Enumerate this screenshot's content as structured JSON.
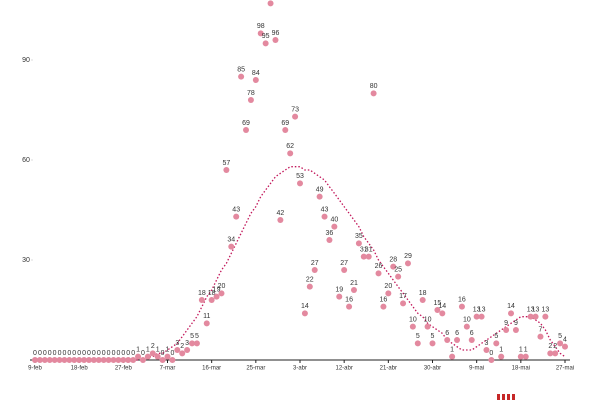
{
  "chart_data": {
    "type": "scatter",
    "categories": [
      "9-feb",
      null,
      null,
      null,
      null,
      null,
      null,
      null,
      null,
      "18-feb",
      null,
      null,
      null,
      null,
      null,
      null,
      null,
      null,
      "27-feb",
      null,
      null,
      null,
      null,
      null,
      null,
      null,
      null,
      "7-mar",
      null,
      null,
      null,
      null,
      null,
      null,
      null,
      null,
      "16-mar",
      null,
      null,
      null,
      null,
      null,
      null,
      null,
      null,
      "25-mar",
      null,
      null,
      null,
      null,
      null,
      null,
      null,
      null,
      "3-abr",
      null,
      null,
      null,
      null,
      null,
      null,
      null,
      null,
      "12-abr",
      null,
      null,
      null,
      null,
      null,
      null,
      null,
      null,
      "21-abr",
      null,
      null,
      null,
      null,
      null,
      null,
      null,
      null,
      "30-abr",
      null,
      null,
      null,
      null,
      null,
      null,
      null,
      null,
      "9-mai",
      null,
      null,
      null,
      null,
      null,
      null,
      null,
      null,
      "18-mai",
      null,
      null,
      null,
      null,
      null,
      null,
      null,
      null,
      "27-mai"
    ],
    "series": [
      {
        "color": "#e3899f",
        "values": [
          0,
          0,
          0,
          0,
          0,
          0,
          0,
          0,
          0,
          0,
          0,
          0,
          0,
          0,
          0,
          0,
          0,
          0,
          0,
          0,
          0,
          1,
          0,
          1,
          2,
          1,
          0,
          1,
          0,
          3,
          2,
          3,
          5,
          5,
          18,
          11,
          18,
          19,
          20,
          57,
          34,
          43,
          85,
          69,
          78,
          84,
          98,
          95,
          107,
          96,
          42,
          69,
          62,
          73,
          53,
          14,
          22,
          27,
          49,
          43,
          36,
          40,
          19,
          27,
          16,
          21,
          35,
          31,
          31,
          80,
          26,
          16,
          20,
          28,
          25,
          17,
          29,
          10,
          5,
          18,
          10,
          5,
          15,
          14,
          6,
          1,
          6,
          16,
          10,
          6,
          13,
          13,
          3,
          0,
          5,
          1,
          9,
          14,
          9,
          1,
          1,
          13,
          13,
          7,
          13,
          2,
          2,
          5,
          4
        ]
      },
      {
        "color": "#c2185b",
        "values": [
          0,
          0,
          0,
          0,
          0,
          0,
          0,
          0,
          0,
          0,
          0,
          0,
          0,
          0,
          0,
          0,
          0,
          0,
          0,
          0,
          0,
          0,
          0,
          1,
          1,
          2,
          2,
          3,
          4,
          5,
          7,
          9,
          11,
          13,
          16,
          19,
          21,
          24,
          27,
          29,
          32,
          35,
          38,
          41,
          44,
          46,
          49,
          51,
          53,
          55,
          56,
          57,
          58,
          58,
          58,
          57,
          57,
          56,
          55,
          54,
          52,
          50,
          48,
          46,
          44,
          42,
          40,
          37,
          35,
          33,
          30,
          28,
          26,
          24,
          22,
          20,
          18,
          16,
          14,
          13,
          11,
          10,
          9,
          8,
          6,
          5,
          4,
          3,
          3,
          3,
          4,
          5,
          6,
          7,
          8,
          9,
          10,
          11,
          12,
          13,
          13,
          13,
          12,
          11,
          9,
          6,
          4,
          2,
          1
        ]
      }
    ],
    "ylim": [
      0,
      108
    ],
    "yticks": [
      30,
      60,
      90
    ]
  }
}
